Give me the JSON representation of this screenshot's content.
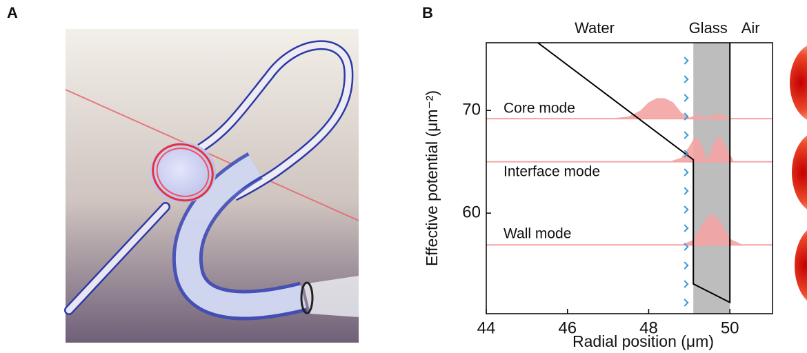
{
  "panel_labels": [
    "A",
    "B"
  ],
  "chart_data": {
    "type": "line",
    "annotations": [
      "Water",
      "Glass",
      "Air"
    ],
    "xlabel": "Radial position (μm)",
    "ylabel": "Effective potential (μm⁻²)",
    "xlim": [
      44,
      51.05
    ],
    "ylim": [
      50.2,
      76.6
    ],
    "xticks": [
      44,
      46,
      48,
      50
    ],
    "yticks": [
      60,
      70
    ],
    "shaded_x": [
      49.1,
      50
    ],
    "potential": {
      "color": "#000000",
      "x": [
        45.27,
        49.1,
        49.1,
        50,
        50
      ],
      "values": [
        76.6,
        65.2,
        53.1,
        51.3,
        76.6
      ]
    },
    "series": [
      {
        "name": "Core mode",
        "color": "#f4a3a3",
        "level": 69.2,
        "x": [
          44,
          47,
          47.5,
          47.8,
          48.0,
          48.2,
          48.4,
          48.6,
          48.8,
          49.0,
          49.2,
          49.4,
          49.6,
          49.8,
          50.0,
          51
        ],
        "values": [
          69.2,
          69.2,
          69.4,
          70.0,
          70.8,
          71.2,
          71.2,
          70.8,
          69.8,
          69.3,
          69.6,
          69.3,
          69.6,
          69.6,
          69.25,
          69.2
        ]
      },
      {
        "name": "Interface mode",
        "color": "#f4a3a3",
        "level": 65,
        "x": [
          44,
          48.5,
          48.8,
          49.0,
          49.15,
          49.3,
          49.45,
          49.6,
          49.75,
          49.9,
          50.1,
          51
        ],
        "values": [
          65,
          65,
          65.4,
          66.5,
          67.5,
          66.8,
          65.1,
          66.8,
          67.5,
          66.5,
          65,
          65
        ]
      },
      {
        "name": "Wall mode",
        "color": "#f4a3a3",
        "level": 56.9,
        "x": [
          44,
          48.8,
          49.1,
          49.3,
          49.5,
          49.6,
          49.8,
          50.0,
          50.3,
          51
        ],
        "values": [
          56.9,
          56.9,
          57.4,
          58.8,
          59.8,
          59.9,
          59.0,
          57.5,
          56.95,
          56.9
        ]
      }
    ]
  }
}
